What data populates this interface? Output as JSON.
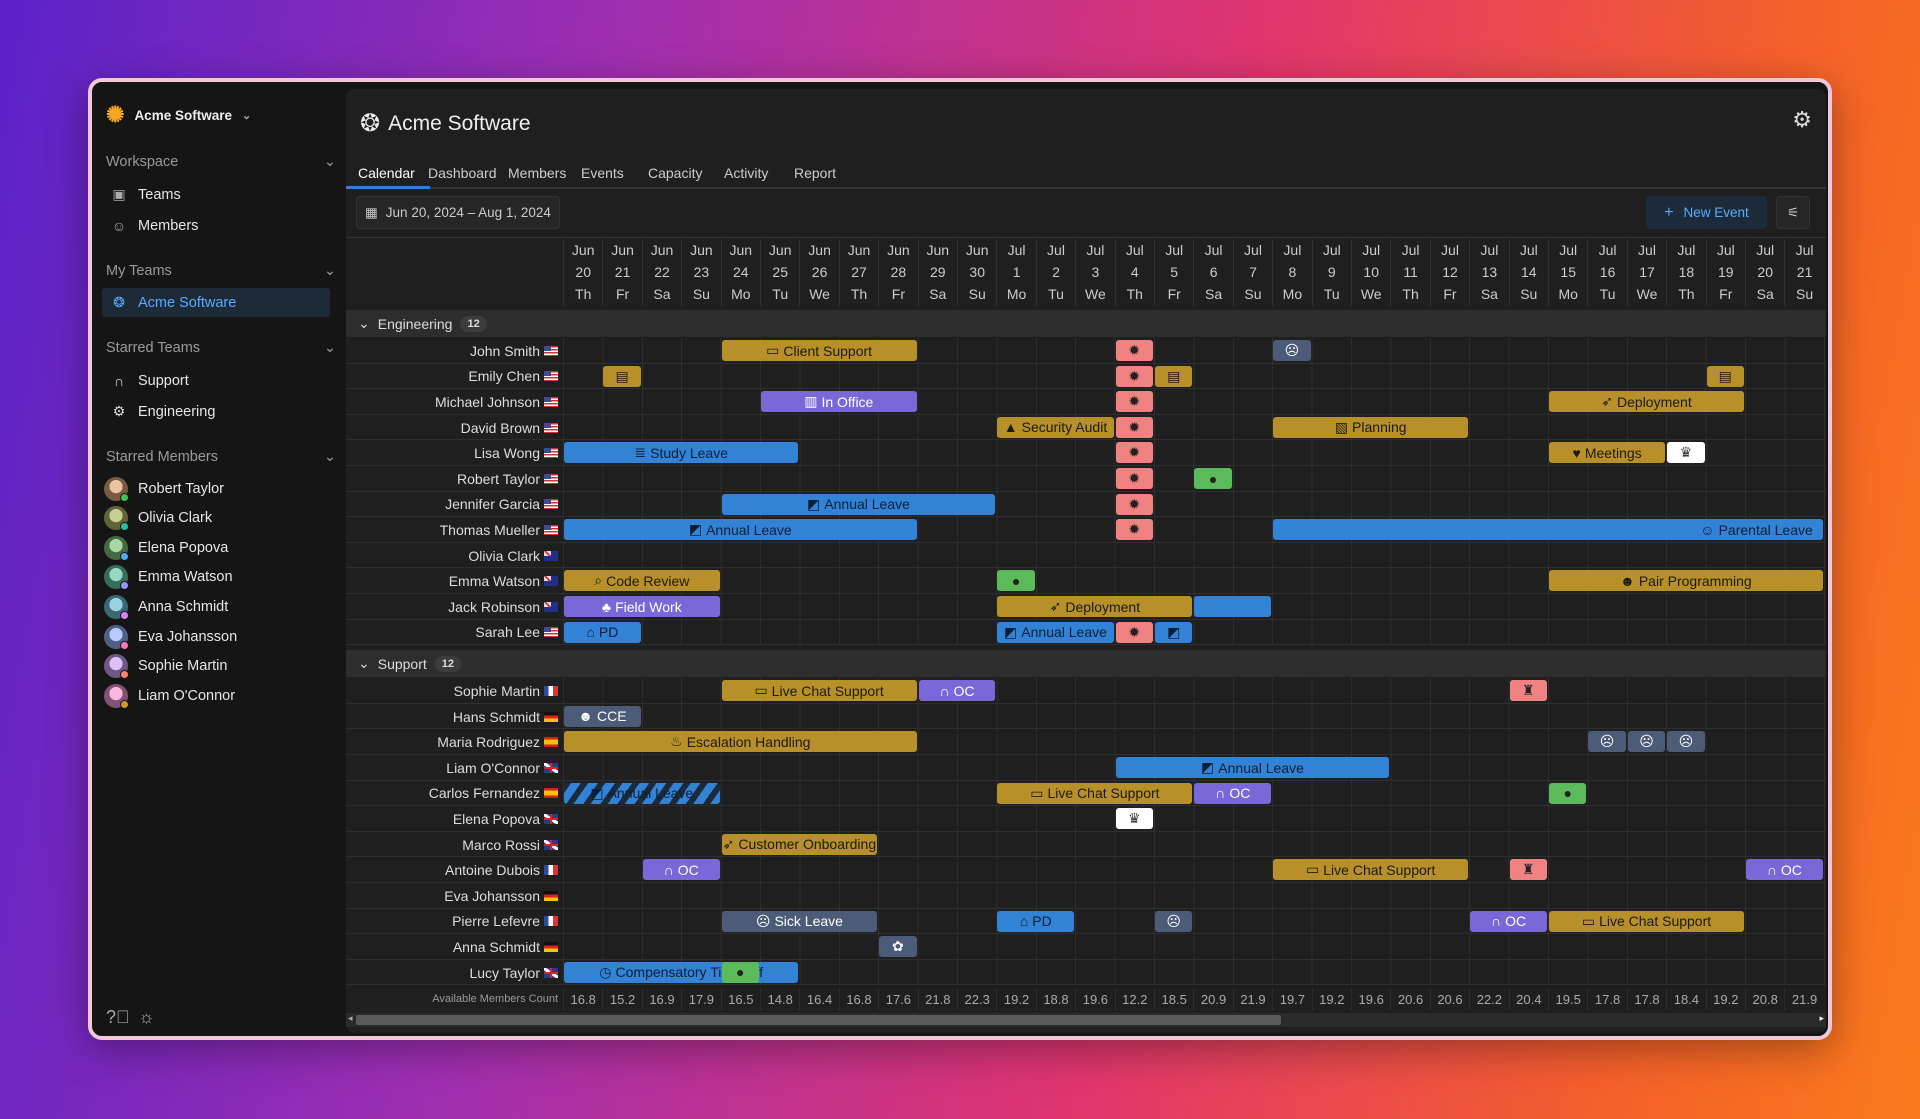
{
  "sidebar": {
    "brand": "Acme Software",
    "workspace_label": "Workspace",
    "workspace_items": [
      {
        "label": "Teams",
        "icon": "id-card-icon"
      },
      {
        "label": "Members",
        "icon": "users-icon"
      }
    ],
    "my_teams_label": "My Teams",
    "my_teams": [
      {
        "label": "Acme Software",
        "icon": "aperture-icon",
        "selected": true
      }
    ],
    "starred_teams_label": "Starred Teams",
    "starred_teams": [
      {
        "label": "Support",
        "icon": "headphones-icon"
      },
      {
        "label": "Engineering",
        "icon": "gear-icon"
      }
    ],
    "starred_members_label": "Starred Members",
    "starred_members": [
      "Robert Taylor",
      "Olivia Clark",
      "Elena Popova",
      "Emma Watson",
      "Anna Schmidt",
      "Eva Johansson",
      "Sophie Martin",
      "Liam O'Connor"
    ]
  },
  "header": {
    "title": "Acme Software",
    "tabs": [
      "Calendar",
      "Dashboard",
      "Members",
      "Events",
      "Capacity",
      "Activity",
      "Report"
    ],
    "active_tab": "Calendar"
  },
  "toolbar": {
    "date_range": "Jun 20, 2024 – Aug 1, 2024",
    "new_event": "New Event"
  },
  "colors": {
    "gold": "#b8902a",
    "blue": "#3282d6",
    "purple": "#7a67d8",
    "slate": "#4b5b78",
    "pink": "#f08282",
    "green": "#5bbb5b",
    "accent": "#5aa9ff"
  },
  "days": [
    [
      "Jun",
      "20",
      "Th"
    ],
    [
      "Jun",
      "21",
      "Fr"
    ],
    [
      "Jun",
      "22",
      "Sa"
    ],
    [
      "Jun",
      "23",
      "Su"
    ],
    [
      "Jun",
      "24",
      "Mo"
    ],
    [
      "Jun",
      "25",
      "Tu"
    ],
    [
      "Jun",
      "26",
      "We"
    ],
    [
      "Jun",
      "27",
      "Th"
    ],
    [
      "Jun",
      "28",
      "Fr"
    ],
    [
      "Jun",
      "29",
      "Sa"
    ],
    [
      "Jun",
      "30",
      "Su"
    ],
    [
      "Jul",
      "1",
      "Mo"
    ],
    [
      "Jul",
      "2",
      "Tu"
    ],
    [
      "Jul",
      "3",
      "We"
    ],
    [
      "Jul",
      "4",
      "Th"
    ],
    [
      "Jul",
      "5",
      "Fr"
    ],
    [
      "Jul",
      "6",
      "Sa"
    ],
    [
      "Jul",
      "7",
      "Su"
    ],
    [
      "Jul",
      "8",
      "Mo"
    ],
    [
      "Jul",
      "9",
      "Tu"
    ],
    [
      "Jul",
      "10",
      "We"
    ],
    [
      "Jul",
      "11",
      "Th"
    ],
    [
      "Jul",
      "12",
      "Fr"
    ],
    [
      "Jul",
      "13",
      "Sa"
    ],
    [
      "Jul",
      "14",
      "Su"
    ],
    [
      "Jul",
      "15",
      "Mo"
    ],
    [
      "Jul",
      "16",
      "Tu"
    ],
    [
      "Jul",
      "17",
      "We"
    ],
    [
      "Jul",
      "18",
      "Th"
    ],
    [
      "Jul",
      "19",
      "Fr"
    ],
    [
      "Jul",
      "20",
      "Sa"
    ],
    [
      "Jul",
      "21",
      "Su"
    ]
  ],
  "groups": [
    {
      "name": "Engineering",
      "count": "12",
      "members": [
        {
          "name": "John Smith",
          "flag": "us",
          "events": [
            {
              "start": 4,
              "span": 5,
              "type": "gold",
              "icon": "speech-icon",
              "label": "Client Support"
            },
            {
              "start": 14,
              "span": 1,
              "type": "pink",
              "icon": "bug-icon"
            },
            {
              "start": 18,
              "span": 1,
              "type": "slate",
              "icon": "sick-face-icon"
            }
          ]
        },
        {
          "name": "Emily Chen",
          "flag": "us",
          "events": [
            {
              "start": 1,
              "span": 1,
              "type": "gold",
              "icon": "calendar-icon"
            },
            {
              "start": 14,
              "span": 1,
              "type": "pink",
              "icon": "bug-icon"
            },
            {
              "start": 15,
              "span": 1,
              "type": "gold",
              "icon": "calendar-icon"
            },
            {
              "start": 29,
              "span": 1,
              "type": "gold",
              "icon": "calendar-icon"
            }
          ]
        },
        {
          "name": "Michael Johnson",
          "flag": "us",
          "events": [
            {
              "start": 5,
              "span": 4,
              "type": "purple",
              "icon": "office-icon",
              "label": "In Office"
            },
            {
              "start": 14,
              "span": 1,
              "type": "pink",
              "icon": "bug-icon"
            },
            {
              "start": 25,
              "span": 5,
              "type": "gold",
              "icon": "rocket-icon",
              "label": "Deployment"
            }
          ]
        },
        {
          "name": "David Brown",
          "flag": "us",
          "events": [
            {
              "start": 11,
              "span": 3,
              "type": "gold",
              "icon": "lock-icon",
              "label": "Security Audit"
            },
            {
              "start": 14,
              "span": 1,
              "type": "pink",
              "icon": "bug-icon"
            },
            {
              "start": 18,
              "span": 5,
              "type": "gold",
              "icon": "map-icon",
              "label": "Planning"
            }
          ]
        },
        {
          "name": "Lisa Wong",
          "flag": "us",
          "events": [
            {
              "start": 0,
              "span": 6,
              "type": "blue",
              "icon": "books-icon",
              "label": "Study Leave"
            },
            {
              "start": 14,
              "span": 1,
              "type": "pink",
              "icon": "bug-icon"
            },
            {
              "start": 25,
              "span": 3,
              "type": "gold",
              "icon": "heart-icon",
              "label": "Meetings"
            },
            {
              "start": 28,
              "span": 1,
              "type": "white",
              "icon": "trophy-icon"
            }
          ]
        },
        {
          "name": "Robert Taylor",
          "flag": "us",
          "events": [
            {
              "start": 14,
              "span": 1,
              "type": "pink",
              "icon": "bug-icon"
            },
            {
              "start": 16,
              "span": 1,
              "type": "green",
              "icon": "cake-icon"
            }
          ]
        },
        {
          "name": "Jennifer Garcia",
          "flag": "us",
          "events": [
            {
              "start": 4,
              "span": 7,
              "type": "blue",
              "icon": "beach-icon",
              "label": "Annual Leave"
            },
            {
              "start": 14,
              "span": 1,
              "type": "pink",
              "icon": "bug-icon"
            }
          ]
        },
        {
          "name": "Thomas Mueller",
          "flag": "us",
          "events": [
            {
              "start": 0,
              "span": 9,
              "type": "blue",
              "icon": "beach-icon",
              "label": "Annual Leave"
            },
            {
              "start": 14,
              "span": 1,
              "type": "pink",
              "icon": "bug-icon"
            },
            {
              "start": 18,
              "span": 14,
              "type": "blue",
              "icon": "smile-icon",
              "label": "Parental Leave",
              "align": "end"
            }
          ]
        },
        {
          "name": "Olivia Clark",
          "flag": "au",
          "events": []
        },
        {
          "name": "Emma Watson",
          "flag": "au",
          "events": [
            {
              "start": 0,
              "span": 4,
              "type": "gold",
              "icon": "magnifier-icon",
              "label": "Code Review"
            },
            {
              "start": 11,
              "span": 1,
              "type": "green",
              "icon": "cake-icon"
            },
            {
              "start": 25,
              "span": 7,
              "type": "gold",
              "icon": "pair-icon",
              "label": "Pair Programming"
            }
          ]
        },
        {
          "name": "Jack Robinson",
          "flag": "au",
          "events": [
            {
              "start": 0,
              "span": 4,
              "type": "purple",
              "icon": "tree-icon",
              "label": "Field Work"
            },
            {
              "start": 11,
              "span": 5,
              "type": "gold",
              "icon": "rocket-icon",
              "label": "Deployment"
            },
            {
              "start": 16,
              "span": 2,
              "type": "blue"
            }
          ]
        },
        {
          "name": "Sarah Lee",
          "flag": "us",
          "events": [
            {
              "start": 0,
              "span": 2,
              "type": "blue",
              "icon": "home-icon",
              "label": "PD"
            },
            {
              "start": 11,
              "span": 3,
              "type": "blue",
              "icon": "beach-icon",
              "label": "Annual Leave"
            },
            {
              "start": 14,
              "span": 1,
              "type": "pink",
              "icon": "bug-icon"
            },
            {
              "start": 15,
              "span": 1,
              "type": "blue",
              "icon": "beach-icon"
            }
          ]
        }
      ]
    },
    {
      "name": "Support",
      "count": "12",
      "members": [
        {
          "name": "Sophie Martin",
          "flag": "fr",
          "events": [
            {
              "start": 4,
              "span": 5,
              "type": "gold",
              "icon": "speech-icon",
              "label": "Live Chat Support"
            },
            {
              "start": 9,
              "span": 2,
              "type": "purple",
              "icon": "headphones-icon",
              "label": "OC"
            },
            {
              "start": 24,
              "span": 1,
              "type": "pink",
              "icon": "castle-icon"
            }
          ]
        },
        {
          "name": "Hans Schmidt",
          "flag": "de",
          "events": [
            {
              "start": 0,
              "span": 2,
              "type": "slate",
              "icon": "person-icon",
              "label": "CCE"
            }
          ]
        },
        {
          "name": "Maria Rodriguez",
          "flag": "es",
          "events": [
            {
              "start": 0,
              "span": 9,
              "type": "gold",
              "icon": "fire-icon",
              "label": "Escalation Handling"
            },
            {
              "start": 26,
              "span": 1,
              "type": "slate",
              "icon": "sick-face-icon"
            },
            {
              "start": 27,
              "span": 1,
              "type": "slate",
              "icon": "sick-face-icon"
            },
            {
              "start": 28,
              "span": 1,
              "type": "slate",
              "icon": "sick-face-icon"
            }
          ]
        },
        {
          "name": "Liam O'Connor",
          "flag": "gb",
          "events": [
            {
              "start": 14,
              "span": 7,
              "type": "blue",
              "icon": "beach-icon",
              "label": "Annual Leave"
            }
          ]
        },
        {
          "name": "Carlos Fernandez",
          "flag": "es",
          "events": [
            {
              "start": 0,
              "span": 4,
              "type": "striped",
              "icon": "beach-icon",
              "label": "Annual Leave"
            },
            {
              "start": 11,
              "span": 5,
              "type": "gold",
              "icon": "speech-icon",
              "label": "Live Chat Support"
            },
            {
              "start": 16,
              "span": 2,
              "type": "purple",
              "icon": "headphones-icon",
              "label": "OC"
            },
            {
              "start": 25,
              "span": 1,
              "type": "green",
              "icon": "cake-icon"
            }
          ]
        },
        {
          "name": "Elena Popova",
          "flag": "gb",
          "events": [
            {
              "start": 14,
              "span": 1,
              "type": "white",
              "icon": "trophy-icon"
            }
          ]
        },
        {
          "name": "Marco Rossi",
          "flag": "gb",
          "events": [
            {
              "start": 4,
              "span": 4,
              "type": "gold",
              "icon": "rocket-icon",
              "label": "Customer Onboarding"
            }
          ]
        },
        {
          "name": "Antoine Dubois",
          "flag": "fr",
          "events": [
            {
              "start": 2,
              "span": 2,
              "type": "purple",
              "icon": "headphones-icon",
              "label": "OC"
            },
            {
              "start": 18,
              "span": 5,
              "type": "gold",
              "icon": "speech-icon",
              "label": "Live Chat Support"
            },
            {
              "start": 24,
              "span": 1,
              "type": "pink",
              "icon": "castle-icon"
            },
            {
              "start": 30,
              "span": 2,
              "type": "purple",
              "icon": "headphones-icon",
              "label": "OC"
            }
          ]
        },
        {
          "name": "Eva Johansson",
          "flag": "de",
          "events": []
        },
        {
          "name": "Pierre Lefevre",
          "flag": "fr",
          "events": [
            {
              "start": 4,
              "span": 4,
              "type": "slate",
              "icon": "sick-face-icon",
              "label": "Sick Leave"
            },
            {
              "start": 11,
              "span": 2,
              "type": "blue",
              "icon": "home-icon",
              "label": "PD"
            },
            {
              "start": 15,
              "span": 1,
              "type": "slate",
              "icon": "sick-face-icon"
            },
            {
              "start": 23,
              "span": 2,
              "type": "purple",
              "icon": "headphones-icon",
              "label": "OC"
            },
            {
              "start": 25,
              "span": 5,
              "type": "gold",
              "icon": "speech-icon",
              "label": "Live Chat Support"
            }
          ]
        },
        {
          "name": "Anna Schmidt",
          "flag": "de",
          "events": [
            {
              "start": 8,
              "span": 1,
              "type": "slate",
              "icon": "brain-icon"
            }
          ]
        },
        {
          "name": "Lucy Taylor",
          "flag": "gb",
          "events": [
            {
              "start": 0,
              "span": 6,
              "type": "blue",
              "icon": "alarm-clock-icon",
              "label": "Compensatory Time Off"
            },
            {
              "start": 4,
              "span": 1,
              "type": "green",
              "icon": "cake-icon"
            }
          ]
        }
      ]
    }
  ],
  "available": {
    "label": "Available Members Count",
    "values": [
      "16.8",
      "15.2",
      "16.9",
      "17.9",
      "16.5",
      "14.8",
      "16.4",
      "16.8",
      "17.6",
      "21.8",
      "22.3",
      "19.2",
      "18.8",
      "19.6",
      "12.2",
      "18.5",
      "20.9",
      "21.9",
      "19.7",
      "19.2",
      "19.6",
      "20.6",
      "20.6",
      "22.2",
      "20.4",
      "19.5",
      "17.8",
      "17.8",
      "18.4",
      "19.2",
      "20.8",
      "21.9"
    ]
  }
}
